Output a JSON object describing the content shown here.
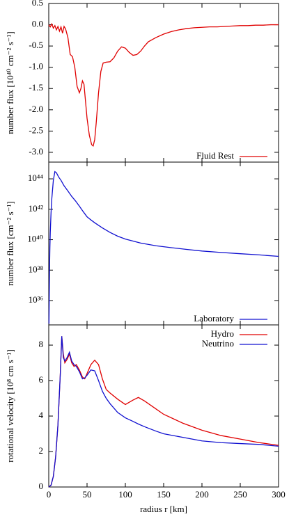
{
  "chart_data": [
    {
      "type": "line",
      "ylabel": "number flux [10⁴⁰ cm⁻² s⁻¹]",
      "legend": "lower right",
      "x": [
        0,
        2,
        4,
        6,
        8,
        10,
        12,
        14,
        16,
        18,
        20,
        22,
        25,
        28,
        31,
        34,
        37,
        40,
        42,
        44,
        46,
        48,
        50,
        53,
        56,
        58,
        60,
        62,
        65,
        68,
        71,
        75,
        80,
        85,
        90,
        95,
        100,
        105,
        110,
        115,
        120,
        125,
        130,
        140,
        150,
        160,
        170,
        180,
        190,
        200,
        210,
        220,
        230,
        240,
        250,
        260,
        270,
        280,
        290,
        300
      ],
      "series": [
        {
          "name": "Fluid Rest",
          "color": "#e00000",
          "values": [
            0,
            -0.05,
            0.02,
            -0.08,
            -0.02,
            -0.12,
            -0.04,
            -0.15,
            -0.05,
            -0.2,
            -0.04,
            -0.1,
            -0.3,
            -0.7,
            -0.75,
            -1.0,
            -1.45,
            -1.6,
            -1.5,
            -1.32,
            -1.4,
            -1.8,
            -2.2,
            -2.6,
            -2.82,
            -2.85,
            -2.7,
            -2.3,
            -1.6,
            -1.1,
            -0.9,
            -0.88,
            -0.87,
            -0.78,
            -0.62,
            -0.52,
            -0.55,
            -0.65,
            -0.72,
            -0.7,
            -0.62,
            -0.5,
            -0.4,
            -0.3,
            -0.22,
            -0.16,
            -0.12,
            -0.09,
            -0.07,
            -0.06,
            -0.05,
            -0.05,
            -0.04,
            -0.03,
            -0.02,
            -0.02,
            -0.01,
            -0.01,
            0,
            0
          ]
        }
      ],
      "xlim": [
        0,
        300
      ],
      "ylim": [
        -3.23,
        0.5
      ],
      "yticks": [
        0.5,
        {
          "value": 0,
          "label": "0.0"
        },
        -0.5,
        {
          "value": -1,
          "label": "-1.0"
        },
        -1.5,
        {
          "value": -2,
          "label": "-2.0"
        },
        -2.5,
        {
          "value": -3,
          "label": "-3.0"
        }
      ]
    },
    {
      "type": "line",
      "ylabel": "number flux [cm⁻² s⁻¹]",
      "legend": "lower right",
      "log": true,
      "x": [
        0.3,
        0.6,
        1,
        1.5,
        2,
        3,
        4,
        5,
        6,
        8,
        10,
        13,
        16,
        20,
        25,
        30,
        35,
        40,
        45,
        50,
        55,
        60,
        70,
        80,
        90,
        100,
        120,
        140,
        160,
        180,
        200,
        225,
        250,
        275,
        300
      ],
      "series": [
        {
          "name": "Laboratory",
          "color": "#1010d0",
          "values": [
            3e+34,
            1e+36,
            1e+38,
            3e+39,
            3e+40,
            6e+41,
            5e+42,
            2e+43,
            8e+43,
            3e+44,
            2.5e+44,
            1.3e+44,
            8e+43,
            3.5e+43,
            1.6e+43,
            7e+42,
            3.5e+42,
            1.6e+42,
            7e+41,
            3.2e+41,
            2e+41,
            1.3e+41,
            6e+40,
            3e+40,
            1.7e+40,
            1.1e+40,
            6e+39,
            4e+39,
            3e+39,
            2.3e+39,
            1.8e+39,
            1.45e+39,
            1.2e+39,
            1e+39,
            8e+38
          ]
        }
      ],
      "xlim": [
        0,
        300
      ],
      "ylim": [
        2.51e+34,
        1.26e+45
      ],
      "yticks": [
        {
          "value": 1e+44,
          "label": "10⁴⁴"
        },
        {
          "value": 1e+42,
          "label": "10⁴²"
        },
        {
          "value": 1e+40,
          "label": "10⁴⁰"
        },
        {
          "value": 1e+38,
          "label": "10³⁸"
        },
        {
          "value": 1e+36,
          "label": "10³⁶"
        }
      ]
    },
    {
      "type": "line",
      "ylabel": "rotational velocity [10⁸ cm s⁻¹]",
      "xlabel": "radius r [km]",
      "legend": "upper right",
      "x": [
        0,
        3,
        6,
        9,
        12,
        15,
        17,
        19,
        21,
        24,
        27,
        30,
        33,
        36,
        40,
        44,
        47,
        50,
        55,
        60,
        65,
        70,
        75,
        80,
        90,
        100,
        110,
        117,
        125,
        140,
        150,
        175,
        200,
        225,
        250,
        275,
        300
      ],
      "series": [
        {
          "name": "Hydro",
          "color": "#e00000",
          "values": [
            0,
            0.1,
            0.6,
            1.7,
            3.5,
            6.3,
            8.5,
            7.5,
            7.0,
            7.2,
            7.5,
            7.0,
            6.8,
            6.9,
            6.6,
            6.2,
            6.1,
            6.4,
            6.9,
            7.15,
            6.9,
            6.1,
            5.5,
            5.3,
            4.95,
            4.65,
            4.9,
            5.05,
            4.85,
            4.4,
            4.1,
            3.6,
            3.2,
            2.9,
            2.7,
            2.5,
            2.35
          ]
        },
        {
          "name": "Neutrino",
          "color": "#1010d0",
          "values": [
            0,
            0.1,
            0.6,
            1.7,
            3.5,
            6.3,
            8.5,
            7.3,
            7.1,
            7.3,
            7.6,
            7.1,
            6.9,
            6.8,
            6.5,
            6.1,
            6.15,
            6.3,
            6.6,
            6.55,
            6.0,
            5.4,
            5.0,
            4.7,
            4.2,
            3.9,
            3.7,
            3.55,
            3.4,
            3.15,
            3.0,
            2.8,
            2.6,
            2.5,
            2.45,
            2.4,
            2.3
          ]
        }
      ],
      "xlim": [
        0,
        300
      ],
      "ylim": [
        0,
        9.14
      ],
      "yticks": [
        0,
        2,
        4,
        6,
        8
      ],
      "xticks": [
        0,
        50,
        100,
        150,
        200,
        250,
        300
      ]
    }
  ]
}
